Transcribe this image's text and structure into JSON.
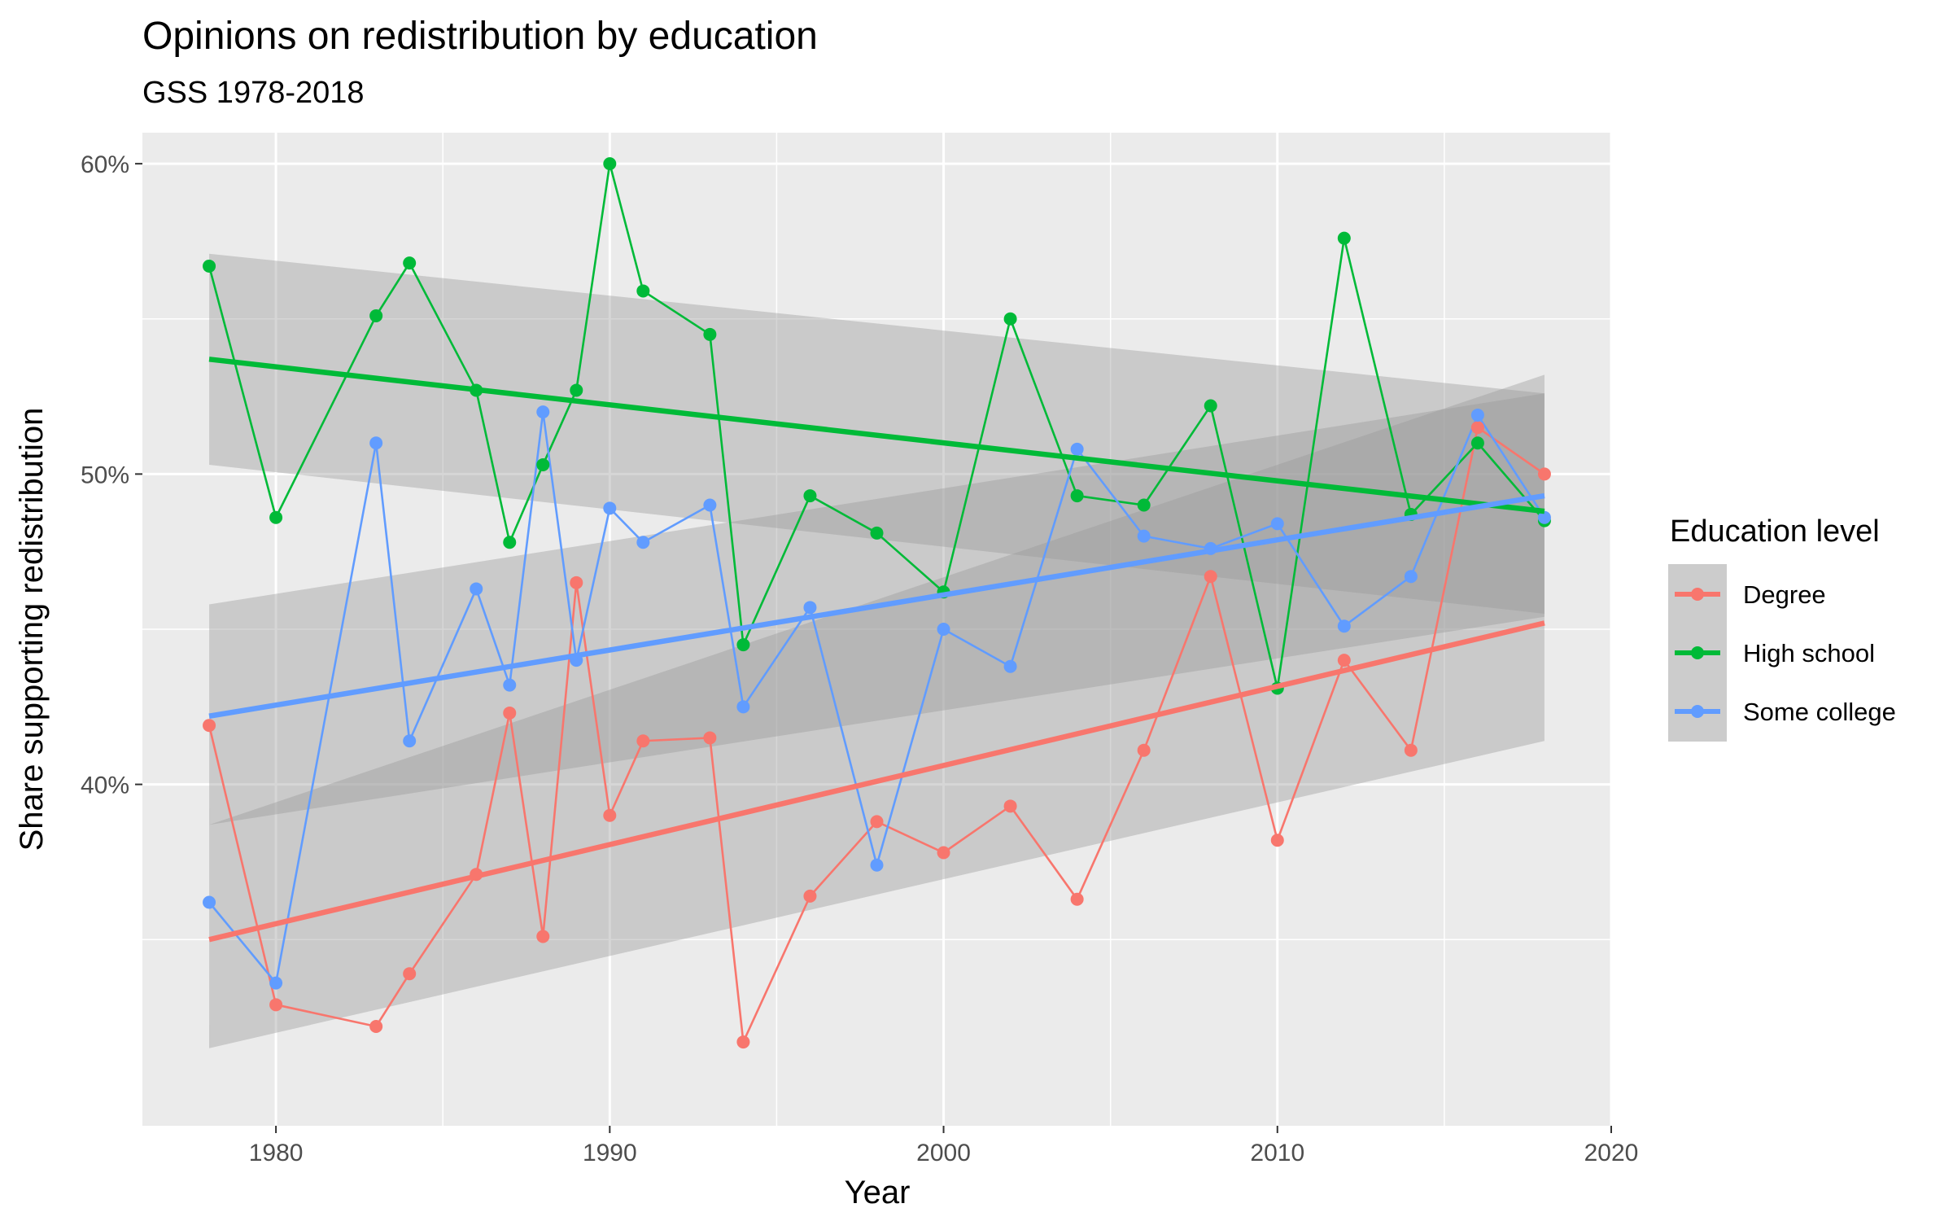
{
  "chart_data": {
    "type": "line",
    "title": "Opinions on redistribution by education",
    "subtitle": "GSS 1978-2018",
    "xlabel": "Year",
    "ylabel": "Share supporting redistribution",
    "xlim": [
      1976,
      2020
    ],
    "ylim": [
      0.29,
      0.61
    ],
    "x_ticks": [
      1980,
      1990,
      2000,
      2010,
      2020
    ],
    "x_tick_labels": [
      "1980",
      "1990",
      "2000",
      "2010",
      "2020"
    ],
    "y_ticks": [
      0.4,
      0.5,
      0.6
    ],
    "y_tick_labels": [
      "40%",
      "50%",
      "60%"
    ],
    "grid": true,
    "panel_background": "#ebebeb",
    "ribbon_color": "#999999",
    "legend": {
      "title": "Education level",
      "position": "right",
      "labels": [
        "Degree",
        "High school",
        "Some college"
      ]
    },
    "series": [
      {
        "name": "Degree",
        "color": "#f8766d",
        "x": [
          1978,
          1980,
          1983,
          1984,
          1986,
          1987,
          1988,
          1989,
          1990,
          1991,
          1993,
          1994,
          1996,
          1998,
          2000,
          2002,
          2004,
          2006,
          2008,
          2010,
          2012,
          2014,
          2016,
          2018
        ],
        "y": [
          0.419,
          0.329,
          0.322,
          0.339,
          0.371,
          0.423,
          0.351,
          0.465,
          0.39,
          0.414,
          0.415,
          0.317,
          0.364,
          0.388,
          0.378,
          0.393,
          0.363,
          0.411,
          0.467,
          0.382,
          0.44,
          0.411,
          0.515,
          0.5
        ],
        "trend": {
          "y_start": 0.35,
          "y_end": 0.452,
          "ci_start": [
            0.315,
            0.387
          ],
          "ci_end": [
            0.414,
            0.532
          ]
        }
      },
      {
        "name": "High school",
        "color": "#00ba38",
        "x": [
          1978,
          1980,
          1983,
          1984,
          1986,
          1987,
          1988,
          1989,
          1990,
          1991,
          1993,
          1994,
          1996,
          1998,
          2000,
          2002,
          2004,
          2006,
          2008,
          2010,
          2012,
          2014,
          2016,
          2018
        ],
        "y": [
          0.567,
          0.486,
          0.551,
          0.568,
          0.527,
          0.478,
          0.503,
          0.527,
          0.6,
          0.559,
          0.545,
          0.445,
          0.493,
          0.481,
          0.462,
          0.55,
          0.493,
          0.49,
          0.522,
          0.431,
          0.576,
          0.487,
          0.51,
          0.485
        ],
        "trend": {
          "y_start": 0.537,
          "y_end": 0.488,
          "ci_start": [
            0.503,
            0.571
          ],
          "ci_end": [
            0.455,
            0.526
          ]
        }
      },
      {
        "name": "Some college",
        "color": "#619cff",
        "x": [
          1978,
          1980,
          1983,
          1984,
          1986,
          1987,
          1988,
          1989,
          1990,
          1991,
          1993,
          1994,
          1996,
          1998,
          2000,
          2002,
          2004,
          2006,
          2008,
          2010,
          2012,
          2014,
          2016,
          2018
        ],
        "y": [
          0.362,
          0.336,
          0.51,
          0.414,
          0.463,
          0.432,
          0.52,
          0.44,
          0.489,
          0.478,
          0.49,
          0.425,
          0.457,
          0.374,
          0.45,
          0.438,
          0.508,
          0.48,
          0.476,
          0.484,
          0.451,
          0.467,
          0.519,
          0.486
        ],
        "trend": {
          "y_start": 0.422,
          "y_end": 0.493,
          "ci_start": [
            0.387,
            0.458
          ],
          "ci_end": [
            0.454,
            0.526
          ]
        }
      }
    ]
  }
}
